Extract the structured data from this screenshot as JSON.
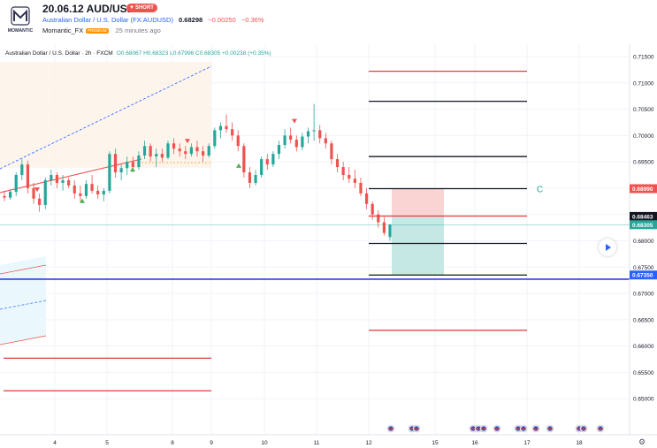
{
  "header": {
    "date": "20.06.12",
    "pair": "AUD/USD",
    "position_badge": "SHORT",
    "symbol_name": "Australian Dollar / U.S. Dollar (FX:AUDUSD)",
    "last_price": "0.68298",
    "change": "−0.00250",
    "change_pct": "−0.36%",
    "author": "Momantic_FX",
    "author_badge": "PREMIUM",
    "published": "25 minutes ago",
    "logo_text": "MOMANTIC"
  },
  "legend": {
    "title": "Australian Dollar / U.S. Dollar · 2h · FXCM",
    "ohlc": "O0.68067 H0.68323 L0.67996 C0.68305 +0.00238 (+0.35%)"
  },
  "colors": {
    "up": "#26a69a",
    "down": "#ef5350",
    "accent": "#2962ff",
    "line_red": "#e53935",
    "line_black": "#131722"
  },
  "chart_data": {
    "type": "candlestick",
    "symbol": "AUD/USD",
    "timeframe": "2h",
    "y_range": [
      0.645,
      0.7155
    ],
    "y_ticks": [
      "0.71500",
      "0.71000",
      "0.70500",
      "0.70000",
      "0.69500",
      "0.69000",
      "0.68500",
      "0.68000",
      "0.67500",
      "0.67000",
      "0.66500",
      "0.66000",
      "0.65500",
      "0.65000"
    ],
    "x_ticks": [
      "4",
      "5",
      "8",
      "9",
      "10",
      "11",
      "12",
      "15",
      "16",
      "17",
      "18"
    ],
    "price_labels": [
      {
        "value": 0.6899,
        "text": "0.68990",
        "color": "#ef5350"
      },
      {
        "value": 0.68463,
        "text": "0.68463",
        "color": "#131722"
      },
      {
        "value": 0.68305,
        "text": "0.68305",
        "color": "#26a69a"
      },
      {
        "value": 0.6735,
        "text": "0.67350",
        "color": "#2962ff"
      }
    ],
    "horizontal_levels": [
      {
        "value": 0.7122,
        "color": "red"
      },
      {
        "value": 0.7065,
        "color": "black"
      },
      {
        "value": 0.696,
        "color": "black"
      },
      {
        "value": 0.6899,
        "color": "black"
      },
      {
        "value": 0.6847,
        "color": "red"
      },
      {
        "value": 0.6795,
        "color": "black"
      },
      {
        "value": 0.6735,
        "color": "black"
      },
      {
        "value": 0.6727,
        "color": "blue"
      },
      {
        "value": 0.663,
        "color": "red"
      },
      {
        "value": 0.6577,
        "color": "red"
      },
      {
        "value": 0.6515,
        "color": "red"
      }
    ],
    "position": {
      "type": "short",
      "entry": 0.68463,
      "stop": 0.6899,
      "target": 0.6735
    },
    "annotation": "C",
    "candles": [
      {
        "o": 0.6885,
        "h": 0.6895,
        "l": 0.6875,
        "c": 0.6882
      },
      {
        "o": 0.6882,
        "h": 0.6898,
        "l": 0.6878,
        "c": 0.6893
      },
      {
        "o": 0.6893,
        "h": 0.693,
        "l": 0.6885,
        "c": 0.6925
      },
      {
        "o": 0.6925,
        "h": 0.6955,
        "l": 0.6915,
        "c": 0.6945
      },
      {
        "o": 0.6945,
        "h": 0.6952,
        "l": 0.689,
        "c": 0.69
      },
      {
        "o": 0.69,
        "h": 0.691,
        "l": 0.687,
        "c": 0.688
      },
      {
        "o": 0.688,
        "h": 0.689,
        "l": 0.6855,
        "c": 0.6868
      },
      {
        "o": 0.6868,
        "h": 0.692,
        "l": 0.686,
        "c": 0.6915
      },
      {
        "o": 0.6915,
        "h": 0.6935,
        "l": 0.6905,
        "c": 0.6925
      },
      {
        "o": 0.6925,
        "h": 0.693,
        "l": 0.69,
        "c": 0.691
      },
      {
        "o": 0.691,
        "h": 0.6925,
        "l": 0.6895,
        "c": 0.6915
      },
      {
        "o": 0.6915,
        "h": 0.692,
        "l": 0.69,
        "c": 0.6905
      },
      {
        "o": 0.6905,
        "h": 0.6915,
        "l": 0.688,
        "c": 0.689
      },
      {
        "o": 0.689,
        "h": 0.6905,
        "l": 0.6875,
        "c": 0.6885
      },
      {
        "o": 0.6885,
        "h": 0.6915,
        "l": 0.688,
        "c": 0.6908
      },
      {
        "o": 0.6908,
        "h": 0.6925,
        "l": 0.689,
        "c": 0.6895
      },
      {
        "o": 0.6895,
        "h": 0.6905,
        "l": 0.688,
        "c": 0.6888
      },
      {
        "o": 0.6888,
        "h": 0.69,
        "l": 0.6875,
        "c": 0.6895
      },
      {
        "o": 0.6895,
        "h": 0.697,
        "l": 0.689,
        "c": 0.6965
      },
      {
        "o": 0.6965,
        "h": 0.6975,
        "l": 0.692,
        "c": 0.693
      },
      {
        "o": 0.693,
        "h": 0.6945,
        "l": 0.6915,
        "c": 0.6938
      },
      {
        "o": 0.6938,
        "h": 0.696,
        "l": 0.6925,
        "c": 0.695
      },
      {
        "o": 0.695,
        "h": 0.696,
        "l": 0.693,
        "c": 0.694
      },
      {
        "o": 0.694,
        "h": 0.697,
        "l": 0.6935,
        "c": 0.6962
      },
      {
        "o": 0.6962,
        "h": 0.699,
        "l": 0.6955,
        "c": 0.698
      },
      {
        "o": 0.698,
        "h": 0.6985,
        "l": 0.695,
        "c": 0.696
      },
      {
        "o": 0.696,
        "h": 0.6975,
        "l": 0.694,
        "c": 0.6965
      },
      {
        "o": 0.6965,
        "h": 0.6975,
        "l": 0.695,
        "c": 0.6958
      },
      {
        "o": 0.6958,
        "h": 0.699,
        "l": 0.6955,
        "c": 0.6985
      },
      {
        "o": 0.6985,
        "h": 0.6995,
        "l": 0.6965,
        "c": 0.6975
      },
      {
        "o": 0.6975,
        "h": 0.6985,
        "l": 0.696,
        "c": 0.697
      },
      {
        "o": 0.697,
        "h": 0.698,
        "l": 0.6955,
        "c": 0.6965
      },
      {
        "o": 0.6965,
        "h": 0.6985,
        "l": 0.696,
        "c": 0.6978
      },
      {
        "o": 0.6978,
        "h": 0.699,
        "l": 0.696,
        "c": 0.697
      },
      {
        "o": 0.697,
        "h": 0.698,
        "l": 0.695,
        "c": 0.6962
      },
      {
        "o": 0.6962,
        "h": 0.6985,
        "l": 0.6958,
        "c": 0.698
      },
      {
        "o": 0.698,
        "h": 0.7015,
        "l": 0.6975,
        "c": 0.701
      },
      {
        "o": 0.701,
        "h": 0.7025,
        "l": 0.6995,
        "c": 0.7018
      },
      {
        "o": 0.7018,
        "h": 0.704,
        "l": 0.7005,
        "c": 0.7012
      },
      {
        "o": 0.7012,
        "h": 0.7025,
        "l": 0.699,
        "c": 0.7
      },
      {
        "o": 0.7,
        "h": 0.701,
        "l": 0.697,
        "c": 0.698
      },
      {
        "o": 0.698,
        "h": 0.6985,
        "l": 0.692,
        "c": 0.693
      },
      {
        "o": 0.693,
        "h": 0.694,
        "l": 0.69,
        "c": 0.691
      },
      {
        "o": 0.691,
        "h": 0.6935,
        "l": 0.6905,
        "c": 0.6925
      },
      {
        "o": 0.6925,
        "h": 0.696,
        "l": 0.692,
        "c": 0.6955
      },
      {
        "o": 0.6955,
        "h": 0.6965,
        "l": 0.6935,
        "c": 0.6945
      },
      {
        "o": 0.6945,
        "h": 0.697,
        "l": 0.694,
        "c": 0.6965
      },
      {
        "o": 0.6965,
        "h": 0.699,
        "l": 0.6955,
        "c": 0.6982
      },
      {
        "o": 0.6982,
        "h": 0.7012,
        "l": 0.6975,
        "c": 0.7
      },
      {
        "o": 0.7,
        "h": 0.7015,
        "l": 0.6985,
        "c": 0.6992
      },
      {
        "o": 0.6992,
        "h": 0.7,
        "l": 0.697,
        "c": 0.6978
      },
      {
        "o": 0.6978,
        "h": 0.7005,
        "l": 0.6972,
        "c": 0.6998
      },
      {
        "o": 0.6998,
        "h": 0.7015,
        "l": 0.6985,
        "c": 0.7008
      },
      {
        "o": 0.7008,
        "h": 0.706,
        "l": 0.699,
        "c": 0.701
      },
      {
        "o": 0.701,
        "h": 0.702,
        "l": 0.6985,
        "c": 0.6995
      },
      {
        "o": 0.6995,
        "h": 0.7005,
        "l": 0.6975,
        "c": 0.6985
      },
      {
        "o": 0.6985,
        "h": 0.699,
        "l": 0.6945,
        "c": 0.6955
      },
      {
        "o": 0.6955,
        "h": 0.6965,
        "l": 0.693,
        "c": 0.694
      },
      {
        "o": 0.694,
        "h": 0.695,
        "l": 0.6915,
        "c": 0.6925
      },
      {
        "o": 0.6925,
        "h": 0.694,
        "l": 0.691,
        "c": 0.6918
      },
      {
        "o": 0.6918,
        "h": 0.6935,
        "l": 0.69,
        "c": 0.691
      },
      {
        "o": 0.691,
        "h": 0.692,
        "l": 0.6885,
        "c": 0.689
      },
      {
        "o": 0.689,
        "h": 0.69,
        "l": 0.686,
        "c": 0.687
      },
      {
        "o": 0.687,
        "h": 0.6875,
        "l": 0.684,
        "c": 0.685
      },
      {
        "o": 0.685,
        "h": 0.6858,
        "l": 0.6825,
        "c": 0.6835
      },
      {
        "o": 0.6835,
        "h": 0.6845,
        "l": 0.681,
        "c": 0.6815
      },
      {
        "o": 0.6807,
        "h": 0.6832,
        "l": 0.68,
        "c": 0.6831
      }
    ]
  }
}
